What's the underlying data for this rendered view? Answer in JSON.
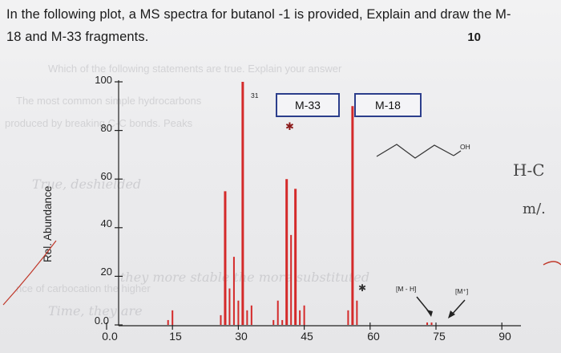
{
  "question": {
    "line1": "In the following plot, a MS spectra for butanol -1 is provided, Explain and draw the M-",
    "line2": "18 and M-33 fragments.",
    "points": "10"
  },
  "chart_data": {
    "type": "bar",
    "ylabel": "Rel. Abundance",
    "xlabel": "",
    "x_ticks": [
      "0.0",
      "15",
      "30",
      "45",
      "60",
      "75",
      "90"
    ],
    "y_ticks": [
      "100",
      "80",
      "60",
      "40",
      "20",
      "0.0"
    ],
    "xlim": [
      0,
      90
    ],
    "ylim": [
      0,
      100
    ],
    "peaks": [
      {
        "mz": 14,
        "y": 2
      },
      {
        "mz": 15,
        "y": 6
      },
      {
        "mz": 26,
        "y": 4
      },
      {
        "mz": 27,
        "y": 55
      },
      {
        "mz": 28,
        "y": 15
      },
      {
        "mz": 29,
        "y": 28
      },
      {
        "mz": 30,
        "y": 10
      },
      {
        "mz": 31,
        "y": 100
      },
      {
        "mz": 32,
        "y": 6
      },
      {
        "mz": 33,
        "y": 8
      },
      {
        "mz": 38,
        "y": 2
      },
      {
        "mz": 39,
        "y": 10
      },
      {
        "mz": 40,
        "y": 2
      },
      {
        "mz": 41,
        "y": 60
      },
      {
        "mz": 42,
        "y": 37
      },
      {
        "mz": 43,
        "y": 56
      },
      {
        "mz": 44,
        "y": 6
      },
      {
        "mz": 45,
        "y": 8
      },
      {
        "mz": 55,
        "y": 6
      },
      {
        "mz": 56,
        "y": 90
      },
      {
        "mz": 57,
        "y": 10
      },
      {
        "mz": 73,
        "y": 1
      },
      {
        "mz": 74,
        "y": 1
      }
    ],
    "annotations": {
      "peak_31_label": "31",
      "m33_label": "M-33",
      "m18_label": "M-18",
      "m_minus_h": "[M - H]",
      "m_plus": "[M⁺]",
      "oh_label": "OH",
      "star": "✱"
    },
    "colors": {
      "bars": "#d42a2a",
      "box_border": "#2c3e8c",
      "axis": "#222222"
    }
  },
  "handwriting": {
    "note1": "H-C",
    "note2": "m/."
  }
}
